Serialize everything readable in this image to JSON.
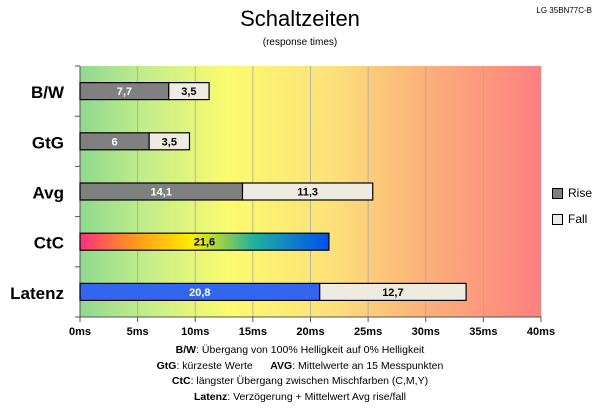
{
  "model_label": "LG 35BN77C-B",
  "chart_data": {
    "type": "bar",
    "orientation": "horizontal",
    "stacked": true,
    "title": "Schaltzeiten",
    "subtitle": "(response times)",
    "categories": [
      "B/W",
      "GtG",
      "Avg",
      "CtC",
      "Latenz"
    ],
    "series": [
      {
        "name": "Rise",
        "values": [
          7.7,
          6,
          14.1,
          21.6,
          20.8
        ],
        "labels": [
          "7,7",
          "6",
          "14,1",
          "21,6",
          "20,8"
        ],
        "color": "#808080"
      },
      {
        "name": "Fall",
        "values": [
          3.5,
          3.5,
          11.3,
          0,
          12.7
        ],
        "labels": [
          "3,5",
          "3,5",
          "11,3",
          "",
          "12,7"
        ],
        "color": "#eeece1"
      }
    ],
    "special_colors": {
      "CtC": "multicolor-gradient",
      "Latenz_rise": "#3366ee"
    },
    "xlim": [
      0,
      40
    ],
    "xticks": [
      0,
      5,
      10,
      15,
      20,
      25,
      30,
      35,
      40
    ],
    "xtick_labels": [
      "0ms",
      "5ms",
      "10ms",
      "15ms",
      "20ms",
      "25ms",
      "30ms",
      "35ms",
      "40ms"
    ],
    "background": "green-yellow-red gradient",
    "grid": true,
    "legend_position": "right"
  },
  "notes": [
    {
      "key": "B/W",
      "text": ":  Übergang von 100% Helligkeit auf 0% Helligkeit"
    },
    {
      "key": "GtG",
      "text": ": kürzeste  Werte",
      "key2": "AVG",
      "text2": ": Mittelwerte  an 15 Messpunkten"
    },
    {
      "key": "CtC",
      "text": ": längster Übergang  zwischen Mischfarben (C,M,Y)"
    },
    {
      "key": "Latenz",
      "text": ": Verzögerung  + Mittelwert  Avg rise/fall"
    }
  ]
}
